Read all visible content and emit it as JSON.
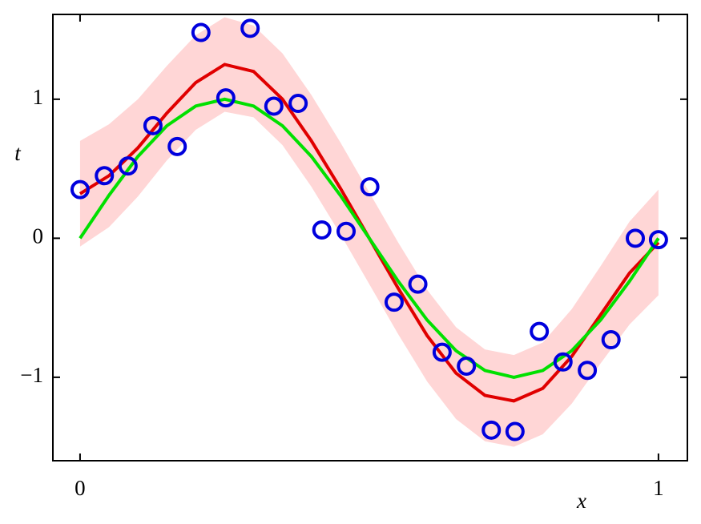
{
  "chart_data": {
    "type": "scatter",
    "xlabel": "x",
    "ylabel": "t",
    "xlim": [
      -0.047,
      1.05
    ],
    "ylim": [
      -1.6,
      1.61
    ],
    "xticks": [
      0,
      1
    ],
    "yticks": [
      {
        "value": -1,
        "label": "−1"
      },
      0,
      1
    ],
    "curve_x": [
      0,
      0.05,
      0.1,
      0.15,
      0.2,
      0.25,
      0.3,
      0.35,
      0.4,
      0.45,
      0.5,
      0.55,
      0.6,
      0.65,
      0.7,
      0.75,
      0.8,
      0.85,
      0.9,
      0.95,
      1.0
    ],
    "band": {
      "color": "#ffd6d6",
      "lower": [
        -0.06,
        0.08,
        0.3,
        0.56,
        0.78,
        0.91,
        0.87,
        0.67,
        0.37,
        0.03,
        -0.33,
        -0.69,
        -1.03,
        -1.3,
        -1.46,
        -1.5,
        -1.41,
        -1.19,
        -0.9,
        -0.62,
        -0.41
      ],
      "upper": [
        0.7,
        0.82,
        1.0,
        1.24,
        1.46,
        1.59,
        1.53,
        1.33,
        1.03,
        0.69,
        0.33,
        -0.03,
        -0.37,
        -0.64,
        -0.8,
        -0.84,
        -0.75,
        -0.51,
        -0.2,
        0.12,
        0.35
      ]
    },
    "series": [
      {
        "color": "#e00000",
        "values": [
          0.32,
          0.45,
          0.65,
          0.9,
          1.12,
          1.25,
          1.2,
          1.0,
          0.7,
          0.36,
          0.0,
          -0.36,
          -0.7,
          -0.97,
          -1.13,
          -1.17,
          -1.08,
          -0.85,
          -0.55,
          -0.25,
          -0.03
        ]
      },
      {
        "color": "#00e000",
        "values": [
          0,
          0.309,
          0.588,
          0.809,
          0.951,
          1,
          0.951,
          0.809,
          0.588,
          0.309,
          0,
          -0.309,
          -0.588,
          -0.809,
          -0.951,
          -1,
          -0.951,
          -0.809,
          -0.588,
          -0.309,
          0
        ]
      }
    ],
    "points": {
      "color": "#0000dd",
      "x": [
        0,
        0.042,
        0.083,
        0.126,
        0.168,
        0.209,
        0.252,
        0.294,
        0.335,
        0.377,
        0.418,
        0.46,
        0.501,
        0.543,
        0.584,
        0.626,
        0.668,
        0.711,
        0.752,
        0.794,
        0.835,
        0.877,
        0.918,
        0.96,
        1.0
      ],
      "values": [
        0.35,
        0.45,
        0.52,
        0.81,
        0.66,
        1.48,
        1.01,
        1.51,
        0.95,
        0.97,
        0.06,
        0.05,
        0.37,
        -0.46,
        -0.33,
        -0.82,
        -0.92,
        -1.38,
        -1.39,
        -0.67,
        -0.89,
        -0.95,
        -0.73,
        0.0,
        -0.01
      ]
    }
  }
}
